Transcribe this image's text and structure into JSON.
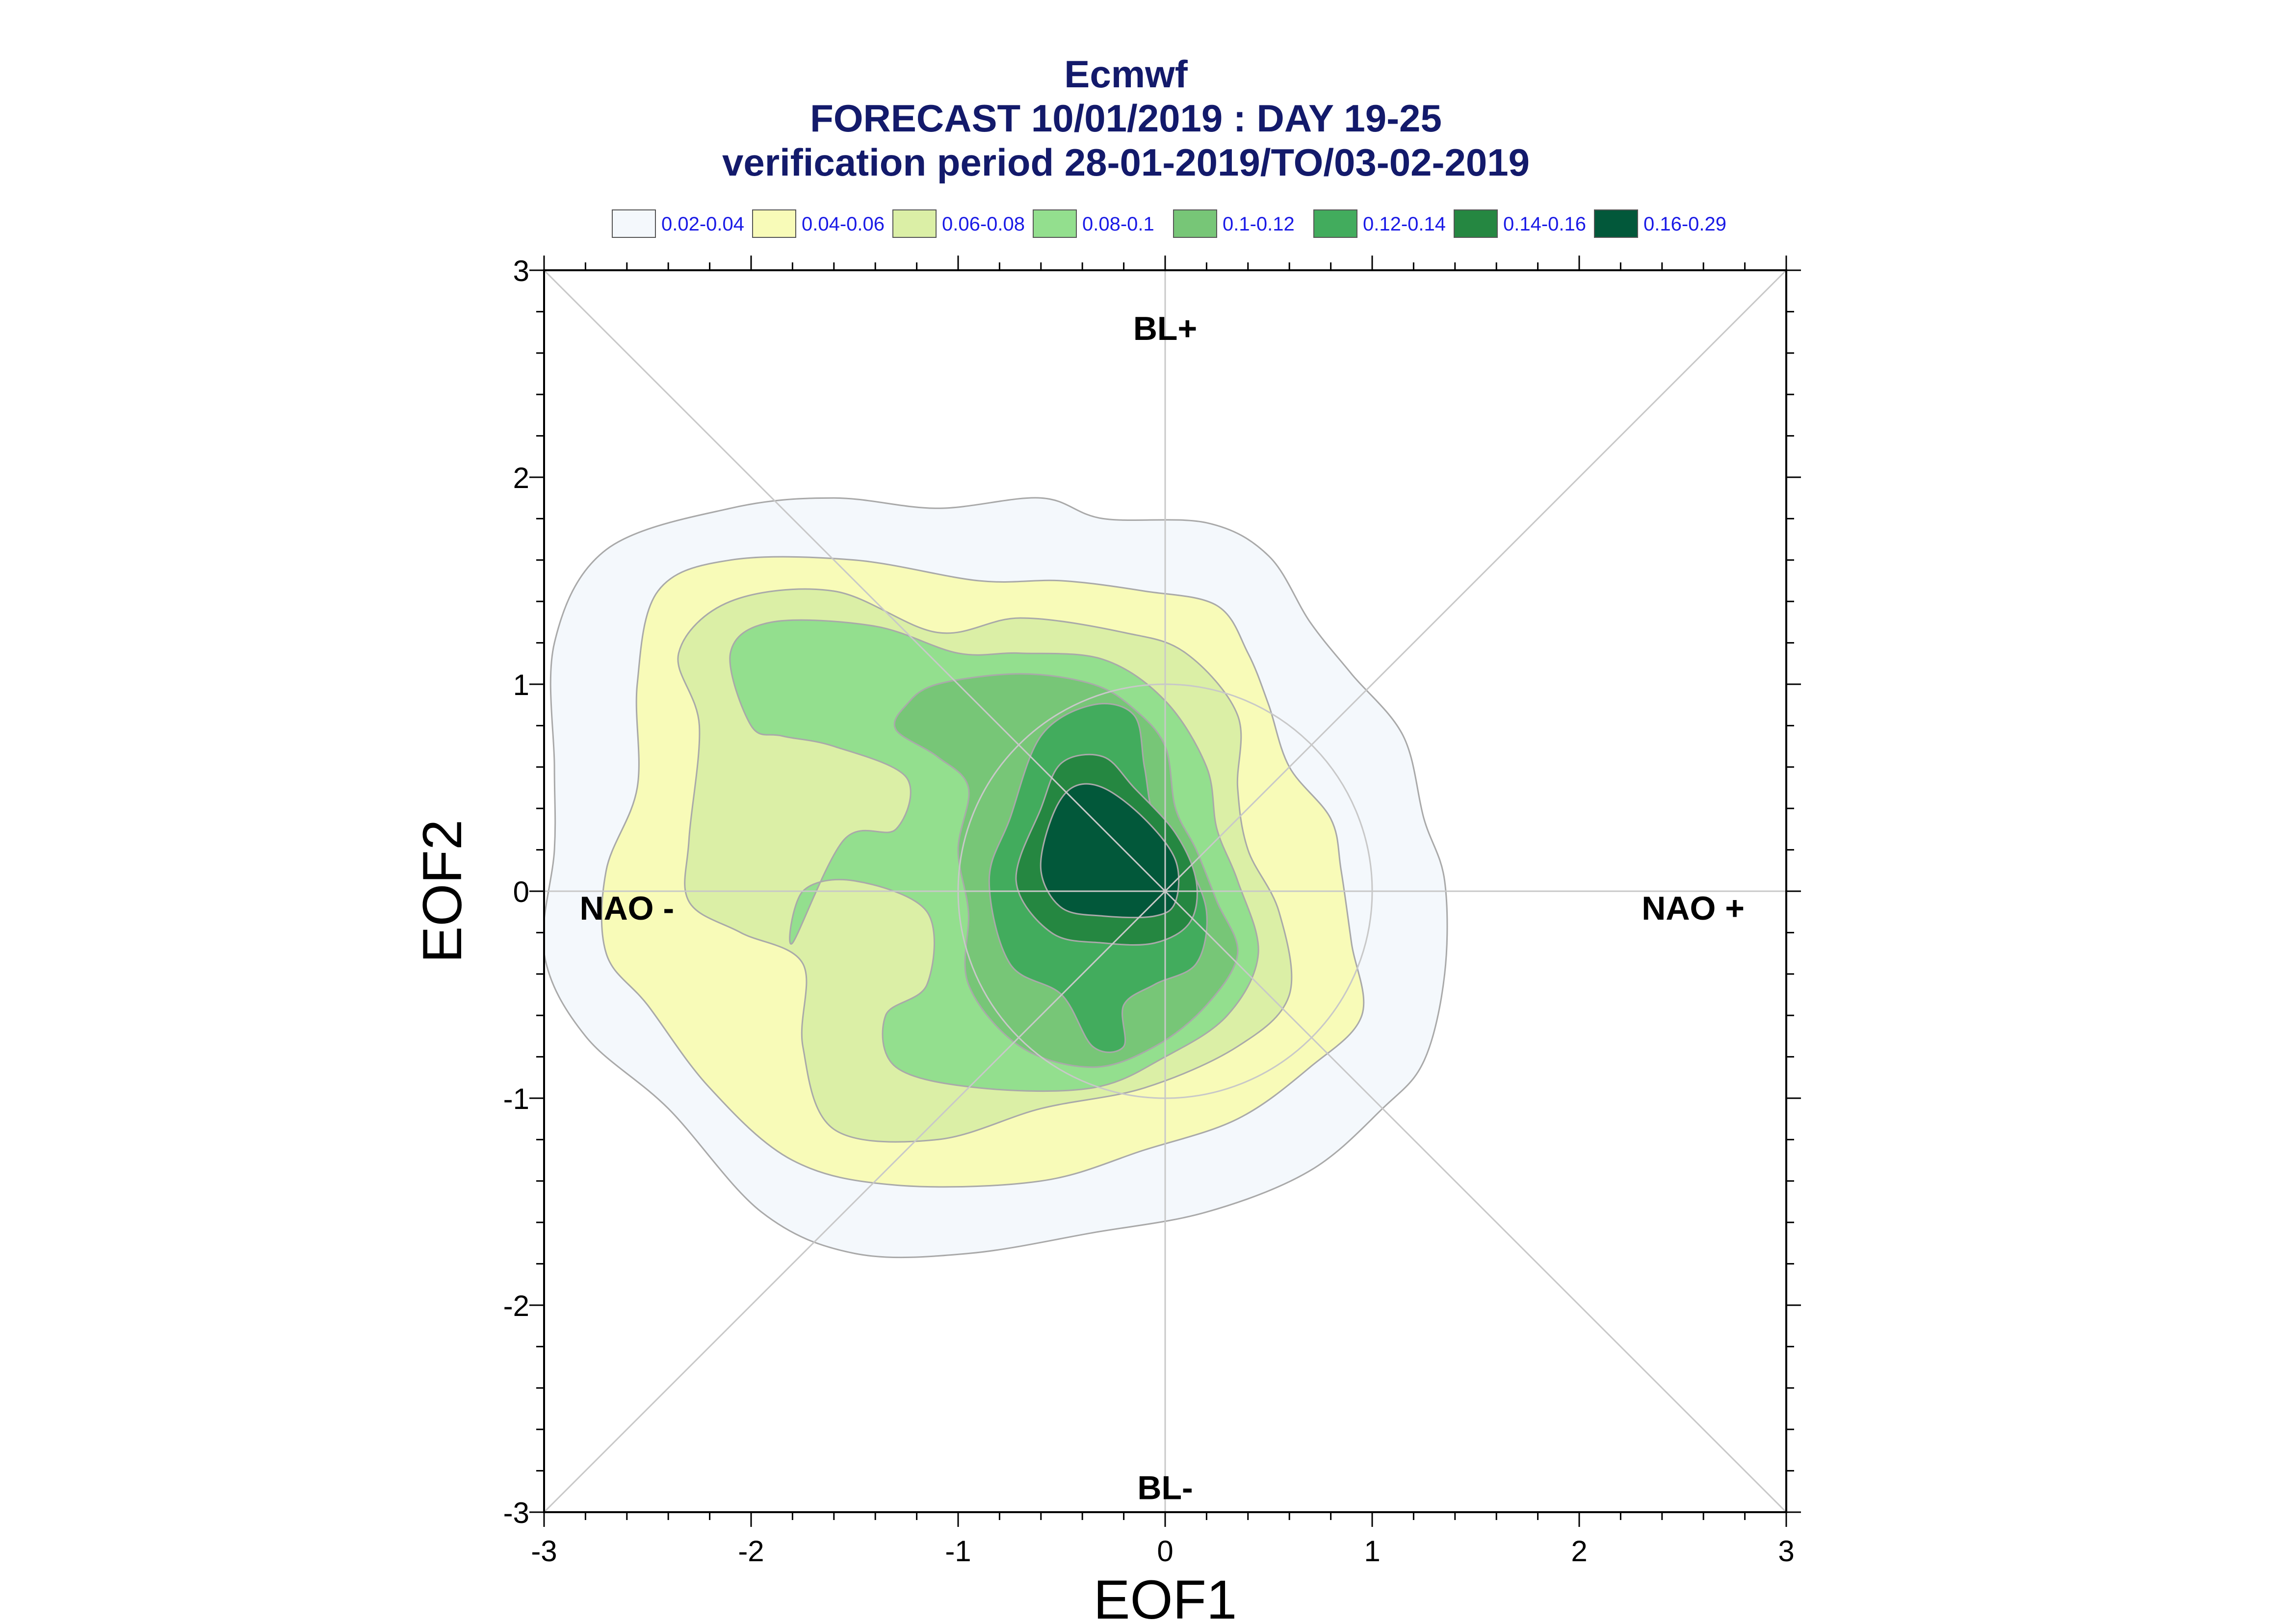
{
  "chart_data": {
    "type": "contour",
    "title_lines": [
      "Ecmwf",
      "FORECAST 10/01/2019 : DAY 19-25",
      "verification period 28-01-2019/TO/03-02-2019"
    ],
    "xlabel": "EOF1",
    "ylabel": "EOF2",
    "xlim": [
      -3,
      3
    ],
    "ylim": [
      -3,
      3
    ],
    "xticks": [
      "-3",
      "-2",
      "-1",
      "0",
      "1",
      "2",
      "3"
    ],
    "yticks": [
      "-3",
      "-2",
      "-1",
      "0",
      "1",
      "2",
      "3"
    ],
    "grid": false,
    "regions": [
      {
        "label": "BL+",
        "x": 0.0,
        "y": 2.72
      },
      {
        "label": "BL-",
        "x": 0.0,
        "y": -2.88
      },
      {
        "label": "NAO -",
        "x": -2.6,
        "y": -0.08
      },
      {
        "label": "NAO +",
        "x": 2.55,
        "y": -0.08
      }
    ],
    "legend": {
      "placement": "top",
      "entries": [
        {
          "label": "0.02-0.04",
          "color": "#f4f8fc"
        },
        {
          "label": "0.04-0.06",
          "color": "#f8fbb8"
        },
        {
          "label": "0.06-0.08",
          "color": "#dbefa6"
        },
        {
          "label": "0.08-0.1",
          "color": "#93df8e"
        },
        {
          "label": "0.1-0.12",
          "color": "#77c677"
        },
        {
          "label": "0.12-0.14",
          "color": "#42ac5d"
        },
        {
          "label": "0.14-0.16",
          "color": "#258741"
        },
        {
          "label": "0.16-0.29",
          "color": "#02583a"
        }
      ]
    },
    "reference_circle": {
      "cx": 0,
      "cy": 0,
      "r": 1
    },
    "contours": [
      {
        "level": "0.02-0.04",
        "color": "#f4f8fc",
        "points": [
          [
            -2.95,
            0.6
          ],
          [
            -2.95,
            1.2
          ],
          [
            -2.7,
            1.65
          ],
          [
            -2.1,
            1.85
          ],
          [
            -1.6,
            1.9
          ],
          [
            -1.1,
            1.85
          ],
          [
            -0.6,
            1.9
          ],
          [
            -0.3,
            1.8
          ],
          [
            0.2,
            1.78
          ],
          [
            0.5,
            1.62
          ],
          [
            0.7,
            1.3
          ],
          [
            0.9,
            1.05
          ],
          [
            1.15,
            0.75
          ],
          [
            1.25,
            0.35
          ],
          [
            1.35,
            0.05
          ],
          [
            1.35,
            -0.4
          ],
          [
            1.25,
            -0.82
          ],
          [
            1.05,
            -1.05
          ],
          [
            0.7,
            -1.35
          ],
          [
            0.2,
            -1.55
          ],
          [
            -0.35,
            -1.65
          ],
          [
            -0.95,
            -1.75
          ],
          [
            -1.5,
            -1.75
          ],
          [
            -1.95,
            -1.55
          ],
          [
            -2.4,
            -1.05
          ],
          [
            -2.8,
            -0.7
          ],
          [
            -3.0,
            -0.3
          ],
          [
            -2.95,
            0.2
          ]
        ]
      },
      {
        "level": "0.04-0.06",
        "color": "#f8fbb8",
        "points": [
          [
            -2.7,
            0.1
          ],
          [
            -2.55,
            0.5
          ],
          [
            -2.55,
            1.0
          ],
          [
            -2.45,
            1.45
          ],
          [
            -2.1,
            1.6
          ],
          [
            -1.5,
            1.6
          ],
          [
            -0.9,
            1.5
          ],
          [
            -0.5,
            1.5
          ],
          [
            -0.1,
            1.45
          ],
          [
            0.25,
            1.38
          ],
          [
            0.4,
            1.15
          ],
          [
            0.5,
            0.9
          ],
          [
            0.6,
            0.6
          ],
          [
            0.8,
            0.35
          ],
          [
            0.85,
            0.1
          ],
          [
            0.9,
            -0.25
          ],
          [
            0.95,
            -0.6
          ],
          [
            0.7,
            -0.85
          ],
          [
            0.35,
            -1.1
          ],
          [
            -0.1,
            -1.25
          ],
          [
            -0.6,
            -1.4
          ],
          [
            -1.3,
            -1.42
          ],
          [
            -1.8,
            -1.3
          ],
          [
            -2.2,
            -0.95
          ],
          [
            -2.5,
            -0.55
          ],
          [
            -2.7,
            -0.3
          ]
        ]
      },
      {
        "level": "0.06-0.08",
        "color": "#dbefa6",
        "points": [
          [
            -2.3,
            0.25
          ],
          [
            -2.25,
            0.8
          ],
          [
            -2.35,
            1.15
          ],
          [
            -2.1,
            1.4
          ],
          [
            -1.6,
            1.45
          ],
          [
            -1.1,
            1.25
          ],
          [
            -0.7,
            1.32
          ],
          [
            -0.2,
            1.25
          ],
          [
            0.1,
            1.15
          ],
          [
            0.35,
            0.85
          ],
          [
            0.35,
            0.5
          ],
          [
            0.4,
            0.2
          ],
          [
            0.55,
            -0.1
          ],
          [
            0.6,
            -0.5
          ],
          [
            0.35,
            -0.75
          ],
          [
            -0.1,
            -0.95
          ],
          [
            -0.6,
            -1.05
          ],
          [
            -1.1,
            -1.2
          ],
          [
            -1.6,
            -1.15
          ],
          [
            -1.75,
            -0.75
          ],
          [
            -1.75,
            -0.35
          ],
          [
            -2.05,
            -0.2
          ],
          [
            -2.3,
            -0.05
          ]
        ]
      },
      {
        "level": "0.08-0.1",
        "color": "#93df8e",
        "points": [
          [
            -2.0,
            0.8
          ],
          [
            -2.1,
            1.15
          ],
          [
            -1.9,
            1.3
          ],
          [
            -1.4,
            1.28
          ],
          [
            -1.0,
            1.15
          ],
          [
            -0.7,
            1.15
          ],
          [
            -0.3,
            1.12
          ],
          [
            0.0,
            0.92
          ],
          [
            0.2,
            0.6
          ],
          [
            0.25,
            0.3
          ],
          [
            0.35,
            0.05
          ],
          [
            0.45,
            -0.3
          ],
          [
            0.3,
            -0.6
          ],
          [
            0.0,
            -0.8
          ],
          [
            -0.35,
            -0.95
          ],
          [
            -0.9,
            -0.95
          ],
          [
            -1.3,
            -0.85
          ],
          [
            -1.35,
            -0.6
          ],
          [
            -1.15,
            -0.45
          ],
          [
            -1.15,
            -0.1
          ],
          [
            -1.5,
            0.05
          ],
          [
            -1.75,
            0.0
          ],
          [
            -1.8,
            -0.25
          ],
          [
            -1.55,
            0.25
          ],
          [
            -1.3,
            0.3
          ],
          [
            -1.25,
            0.55
          ],
          [
            -1.6,
            0.7
          ],
          [
            -1.85,
            0.75
          ]
        ]
      },
      {
        "level": "0.1-0.12",
        "color": "#77c677",
        "points": [
          [
            -1.25,
            0.9
          ],
          [
            -1.1,
            1.0
          ],
          [
            -0.7,
            1.05
          ],
          [
            -0.35,
            1.0
          ],
          [
            -0.15,
            0.88
          ],
          [
            0.0,
            0.7
          ],
          [
            0.05,
            0.4
          ],
          [
            0.15,
            0.2
          ],
          [
            0.25,
            -0.05
          ],
          [
            0.35,
            -0.3
          ],
          [
            0.2,
            -0.55
          ],
          [
            -0.05,
            -0.75
          ],
          [
            -0.35,
            -0.85
          ],
          [
            -0.7,
            -0.75
          ],
          [
            -0.95,
            -0.45
          ],
          [
            -0.95,
            -0.1
          ],
          [
            -1.0,
            0.2
          ],
          [
            -0.95,
            0.5
          ],
          [
            -1.1,
            0.65
          ],
          [
            -1.3,
            0.78
          ]
        ]
      },
      {
        "level": "0.12-0.14",
        "color": "#42ac5d",
        "points": [
          [
            -0.75,
            0.35
          ],
          [
            -0.6,
            0.75
          ],
          [
            -0.35,
            0.9
          ],
          [
            -0.15,
            0.85
          ],
          [
            -0.1,
            0.6
          ],
          [
            -0.05,
            0.35
          ],
          [
            0.1,
            0.15
          ],
          [
            0.2,
            -0.1
          ],
          [
            0.15,
            -0.35
          ],
          [
            -0.05,
            -0.45
          ],
          [
            -0.2,
            -0.55
          ],
          [
            -0.2,
            -0.75
          ],
          [
            -0.35,
            -0.75
          ],
          [
            -0.5,
            -0.5
          ],
          [
            -0.75,
            -0.35
          ],
          [
            -0.85,
            0.05
          ]
        ]
      },
      {
        "level": "0.14-0.16",
        "color": "#258741",
        "points": [
          [
            -0.6,
            0.4
          ],
          [
            -0.5,
            0.62
          ],
          [
            -0.3,
            0.65
          ],
          [
            -0.15,
            0.5
          ],
          [
            0.05,
            0.28
          ],
          [
            0.15,
            0.05
          ],
          [
            0.12,
            -0.15
          ],
          [
            -0.05,
            -0.25
          ],
          [
            -0.3,
            -0.25
          ],
          [
            -0.55,
            -0.2
          ],
          [
            -0.72,
            0.05
          ]
        ]
      },
      {
        "level": "0.16-0.29",
        "color": "#02583a",
        "points": [
          [
            -0.55,
            0.35
          ],
          [
            -0.45,
            0.5
          ],
          [
            -0.3,
            0.5
          ],
          [
            -0.1,
            0.35
          ],
          [
            0.05,
            0.15
          ],
          [
            0.05,
            -0.05
          ],
          [
            -0.05,
            -0.12
          ],
          [
            -0.3,
            -0.12
          ],
          [
            -0.5,
            -0.08
          ],
          [
            -0.6,
            0.1
          ]
        ]
      }
    ]
  }
}
